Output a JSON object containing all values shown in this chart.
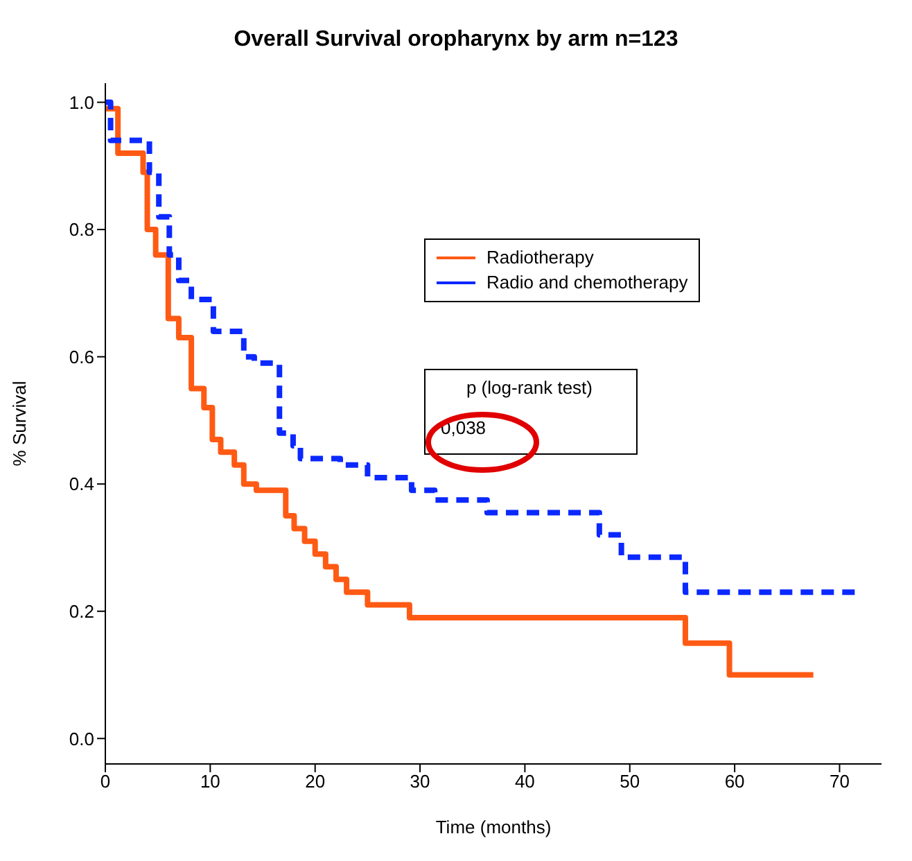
{
  "chart_data": {
    "type": "step",
    "title": "Overall Survival oropharynx by arm n=123",
    "xlabel": "Time (months)",
    "ylabel": "% Survival",
    "xlim": [
      0,
      74
    ],
    "xticks": [
      0,
      10,
      20,
      30,
      40,
      50,
      60,
      70
    ],
    "ylim": [
      -0.04,
      1.03
    ],
    "yticks": [
      {
        "value": 0,
        "label": "0.0"
      },
      {
        "value": 0.2,
        "label": "0.2"
      },
      {
        "value": 0.4,
        "label": "0.4"
      },
      {
        "value": 0.6,
        "label": "0.6"
      },
      {
        "value": 0.8,
        "label": "0.8"
      },
      {
        "value": 1,
        "label": "1.0"
      }
    ],
    "legend": "top right",
    "marker": "none",
    "annotations": [
      "p (log-rank test)",
      "0,038"
    ],
    "series": [
      {
        "name": "Radiotherapy",
        "color": "#ff5a14",
        "line_style": "solid",
        "x": [
          0,
          1.2,
          3.6,
          4,
          4.8,
          6,
          7,
          8.2,
          9.4,
          10.2,
          11,
          12.3,
          13.2,
          14.4,
          17.2,
          18,
          19,
          20,
          21,
          22,
          23,
          25,
          29,
          55.3,
          59.5,
          67.5
        ],
        "values": [
          0.99,
          0.92,
          0.89,
          0.8,
          0.76,
          0.66,
          0.63,
          0.55,
          0.52,
          0.47,
          0.45,
          0.43,
          0.4,
          0.39,
          0.35,
          0.33,
          0.31,
          0.29,
          0.27,
          0.25,
          0.23,
          0.21,
          0.19,
          0.15,
          0.1,
          0.1
        ]
      },
      {
        "name": "Radio and chemotherapy",
        "color": "#0a28ff",
        "line_style": "dashed",
        "x": [
          0,
          0.5,
          4.2,
          5.1,
          6.1,
          7,
          8.2,
          10.3,
          13.2,
          14.2,
          16.6,
          17.9,
          18.6,
          22.4,
          25,
          29.2,
          31.4,
          36.4,
          47.1,
          49.2,
          55.3,
          71.7
        ],
        "values": [
          1,
          0.94,
          0.89,
          0.82,
          0.76,
          0.72,
          0.69,
          0.64,
          0.6,
          0.59,
          0.48,
          0.46,
          0.44,
          0.43,
          0.41,
          0.39,
          0.375,
          0.355,
          0.32,
          0.285,
          0.23,
          0.23
        ]
      }
    ]
  }
}
